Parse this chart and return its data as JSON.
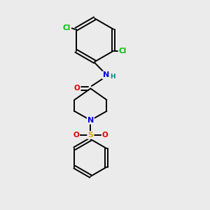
{
  "background_color": "#ebebeb",
  "bond_color": "#000000",
  "bond_width": 1.4,
  "atom_colors": {
    "C": "#000000",
    "N": "#0000dd",
    "O": "#dd0000",
    "S": "#ddaa00",
    "Cl": "#00bb00",
    "H": "#008888"
  },
  "figsize": [
    3.0,
    3.0
  ],
  "dpi": 100
}
